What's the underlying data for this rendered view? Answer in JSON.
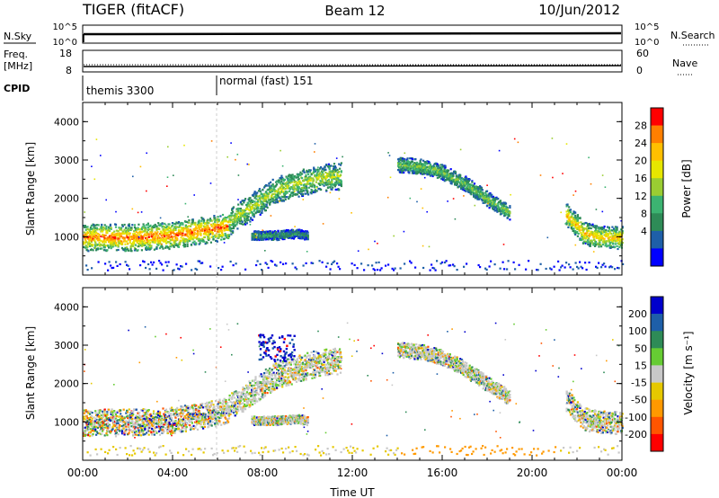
{
  "header": {
    "title": "TIGER (fitACF)",
    "beam": "Beam 12",
    "date": "10/Jun/2012"
  },
  "top_panels": {
    "nsky": {
      "label": "N.Sky",
      "tick_top": "10^5",
      "tick_bottom": "10^0"
    },
    "nsearch": {
      "label": "N.Search",
      "tick_top": "10^5",
      "tick_bottom": "10^0"
    },
    "freq": {
      "label1": "Freq.",
      "label2": "[MHz]",
      "tick_top": "18",
      "tick_bottom": "8"
    },
    "nave": {
      "label": "Nave",
      "tick_top": "60",
      "tick_bottom": "0"
    },
    "cpid": {
      "label": "CPID",
      "mode1": "themis 3300",
      "mode2": "normal (fast) 151"
    }
  },
  "chart_data": [
    {
      "type": "heatmap",
      "name": "power",
      "ylabel": "Slant Range [km]",
      "xlabel": "Time UT",
      "ylim": [
        0,
        4500
      ],
      "xlim": [
        0,
        24
      ],
      "yticks": [
        "1000",
        "2000",
        "3000",
        "4000"
      ],
      "colorbar": {
        "label": "Power [dB]",
        "ticks": [
          "28",
          "24",
          "20",
          "16",
          "12",
          "8",
          "4"
        ],
        "colors": [
          "#ff0000",
          "#ff7f00",
          "#ffbf00",
          "#e6e600",
          "#9acd32",
          "#3cb371",
          "#2e8b57",
          "#1e5fa8",
          "#0000ff"
        ]
      },
      "bands": [
        {
          "t": [
            0,
            0.5,
            2,
            4,
            5.5,
            6.5
          ],
          "r": [
            1000,
            1000,
            1000,
            1050,
            1200,
            1300
          ],
          "w": 350,
          "level": 0.9
        },
        {
          "t": [
            6.5,
            7.5,
            8.5,
            9.5,
            10.5,
            11.5
          ],
          "r": [
            1400,
            1800,
            2200,
            2400,
            2550,
            2600
          ],
          "w": 350,
          "level": 0.55
        },
        {
          "t": [
            14,
            15,
            16,
            17,
            18,
            19
          ],
          "r": [
            2900,
            2850,
            2700,
            2400,
            2000,
            1650
          ],
          "w": 200,
          "level": 0.45
        },
        {
          "t": [
            21.5,
            22.3,
            23,
            24
          ],
          "r": [
            1600,
            1100,
            1000,
            1000
          ],
          "w": 300,
          "level": 0.75
        },
        {
          "t": [
            7.5,
            8.5,
            9.5,
            10
          ],
          "r": [
            1050,
            1050,
            1100,
            1050
          ],
          "w": 120,
          "level": 0.3
        }
      ]
    },
    {
      "type": "heatmap",
      "name": "velocity",
      "ylabel": "Slant Range [km]",
      "xlabel": "Time UT",
      "ylim": [
        0,
        4500
      ],
      "xlim": [
        0,
        24
      ],
      "yticks": [
        "1000",
        "2000",
        "3000",
        "4000"
      ],
      "xticks": [
        "00:00",
        "04:00",
        "08:00",
        "12:00",
        "16:00",
        "20:00",
        "00:00"
      ],
      "colorbar": {
        "label": "Velocity [m s⁻¹]",
        "ticks": [
          "200",
          "100",
          "50",
          "15",
          "-15",
          "-50",
          "-100",
          "-200"
        ],
        "colors": [
          "#0000cc",
          "#1e5fa8",
          "#2e8b57",
          "#66cc33",
          "#c8c8c8",
          "#e6c800",
          "#ff9900",
          "#ff5500",
          "#ff0000"
        ]
      }
    }
  ]
}
